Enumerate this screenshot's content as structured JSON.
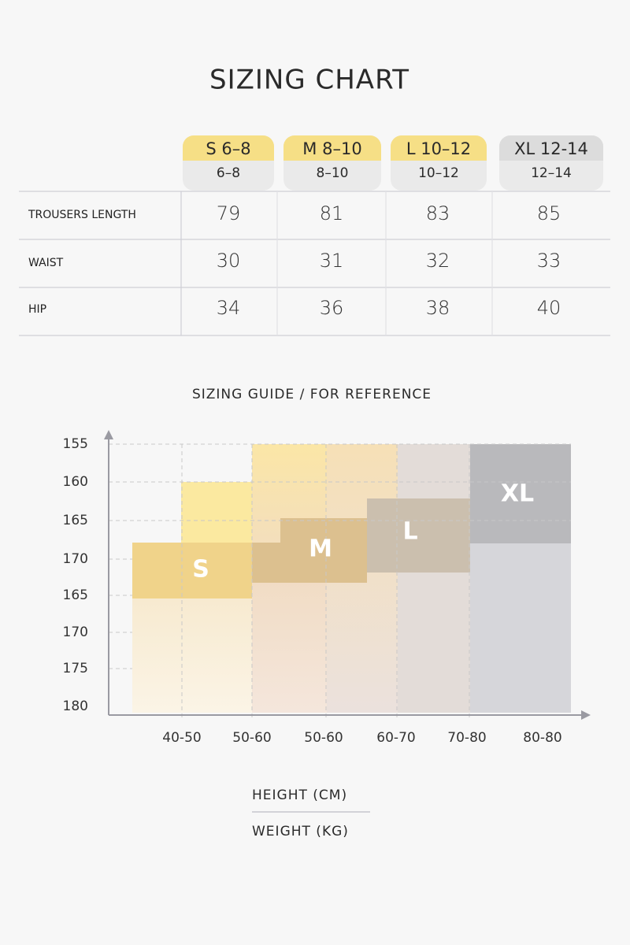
{
  "header": {
    "title": "SIZING CHART"
  },
  "table": {
    "sizes": [
      {
        "name": "S 6–8",
        "sub": "6–8"
      },
      {
        "name": "M 8–10",
        "sub": "8–10"
      },
      {
        "name": "L 10–12",
        "sub": "10–12"
      },
      {
        "name": "XL 12-14",
        "sub": "12–14"
      }
    ],
    "rows": [
      {
        "label": "TROUSERS LENGTH",
        "values": [
          79,
          81,
          83,
          85
        ]
      },
      {
        "label": "WAIST",
        "values": [
          30,
          31,
          32,
          33
        ]
      },
      {
        "label": "HIP",
        "values": [
          34,
          36,
          38,
          40
        ]
      }
    ]
  },
  "guide": {
    "title": "SIZING GUIDE  /  FOR REFERENCE",
    "y_labels": [
      "155",
      "160",
      "165",
      "170",
      "165",
      "170",
      "175",
      "180"
    ],
    "x_labels": [
      "40-50",
      "50-60",
      "50-60",
      "60-70",
      "70-80",
      "80-80"
    ],
    "regions": [
      "S",
      "M",
      "L",
      "XL"
    ],
    "legend": [
      "HEIGHT (CM)",
      "WEIGHT (KG)"
    ]
  }
}
